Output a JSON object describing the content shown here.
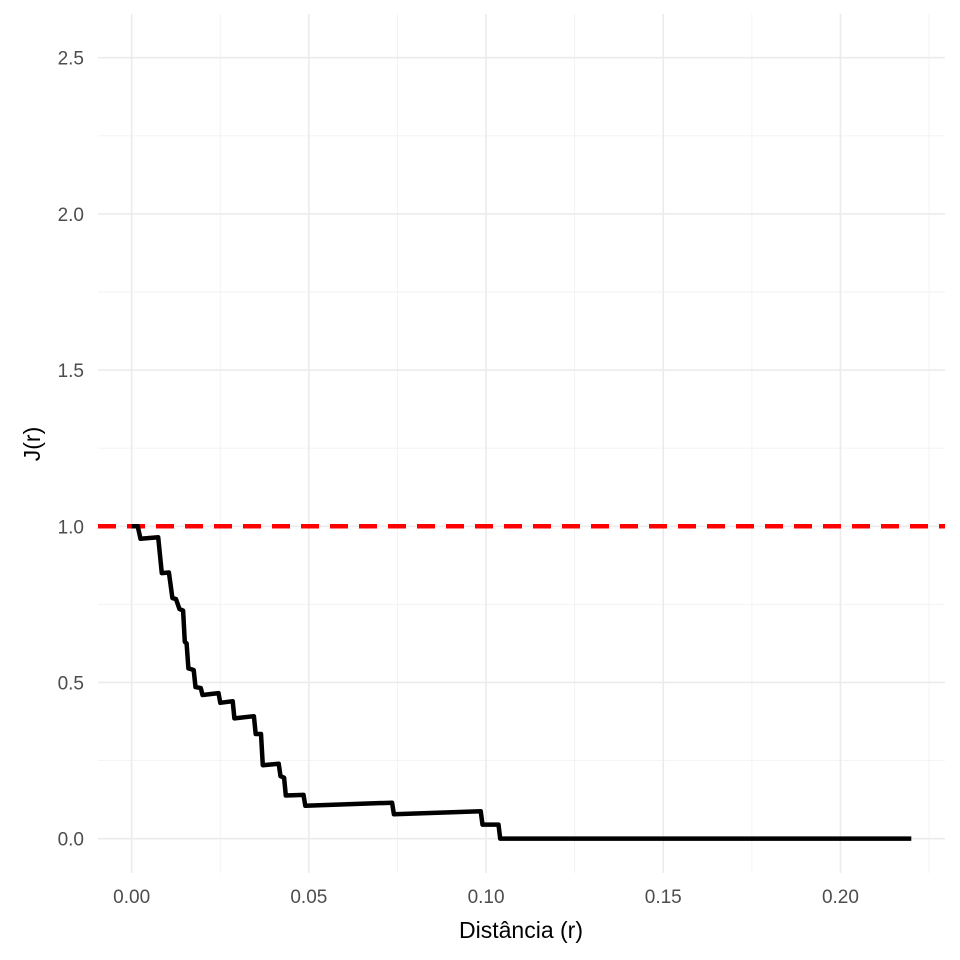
{
  "chart_data": {
    "type": "line",
    "title": "",
    "xlabel": "Distância (r)",
    "ylabel": "J(r)",
    "xlim": [
      -0.0095,
      0.2295
    ],
    "ylim": [
      -0.11,
      2.64
    ],
    "x_ticks": [
      0.0,
      0.05,
      0.1,
      0.15,
      0.2
    ],
    "x_tick_labels": [
      "0.00",
      "0.05",
      "0.10",
      "0.15",
      "0.20"
    ],
    "y_ticks": [
      0.0,
      0.5,
      1.0,
      1.5,
      2.0,
      2.5
    ],
    "y_tick_labels": [
      "0.0",
      "0.5",
      "1.0",
      "1.5",
      "2.0",
      "2.5"
    ],
    "x_minor": [
      0.025,
      0.075,
      0.125,
      0.175,
      0.225
    ],
    "y_minor": [
      0.25,
      0.75,
      1.25,
      1.75,
      2.25
    ],
    "grid": true,
    "reference_line": {
      "y": 1.0,
      "color": "#ff0000",
      "style": "dashed"
    },
    "series": [
      {
        "color": "#000000",
        "x": [
          0.0,
          0.0017,
          0.0025,
          0.0075,
          0.0085,
          0.0105,
          0.0115,
          0.0125,
          0.0135,
          0.0145,
          0.015,
          0.0155,
          0.016,
          0.0175,
          0.018,
          0.0195,
          0.02,
          0.0245,
          0.025,
          0.0285,
          0.029,
          0.0345,
          0.035,
          0.0365,
          0.037,
          0.0415,
          0.042,
          0.043,
          0.0435,
          0.0485,
          0.049,
          0.0735,
          0.074,
          0.0985,
          0.099,
          0.1035,
          0.104,
          0.22
        ],
        "y": [
          1.0,
          1.0,
          0.96,
          0.965,
          0.85,
          0.852,
          0.77,
          0.767,
          0.735,
          0.73,
          0.63,
          0.625,
          0.545,
          0.54,
          0.485,
          0.482,
          0.46,
          0.466,
          0.435,
          0.44,
          0.385,
          0.392,
          0.335,
          0.335,
          0.235,
          0.24,
          0.2,
          0.195,
          0.138,
          0.14,
          0.105,
          0.115,
          0.078,
          0.088,
          0.045,
          0.045,
          0.0,
          0.0
        ]
      }
    ]
  }
}
